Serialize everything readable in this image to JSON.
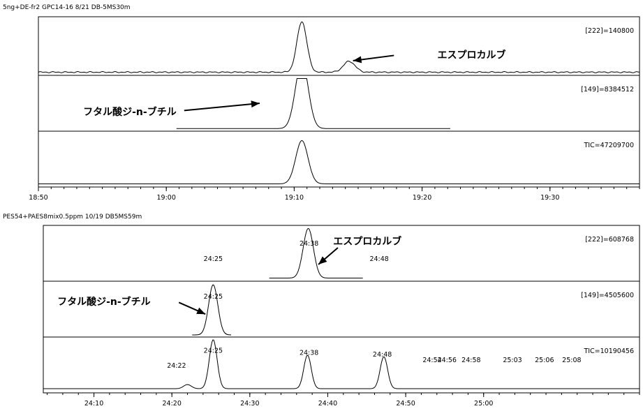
{
  "chart_data": [
    {
      "type": "line",
      "title": "5ng+DE-fr2 GPC14-16 8/21 DB-5MS30m",
      "xlabel": "",
      "ylabel": "",
      "x_axis_unit": "minutes (mm:ss)",
      "xlim": [
        1130,
        1177
      ],
      "x_ticks": [
        {
          "value": 1130,
          "label": "18:50"
        },
        {
          "value": 1140,
          "label": "19:00"
        },
        {
          "value": 1150,
          "label": "19:10"
        },
        {
          "value": 1160,
          "label": "19:20"
        },
        {
          "value": 1170,
          "label": "19:30"
        }
      ],
      "panels": [
        {
          "name": "[222]=140800",
          "baseline": 0.02,
          "peaks": [
            {
              "rt": 1150.6,
              "height": 0.93,
              "width": 0.85
            },
            {
              "rt": 1154.3,
              "height": 0.2,
              "width": 1.0
            }
          ],
          "noise": 0.012,
          "peak_labels": [],
          "annotation": {
            "text": "エスプロカルブ",
            "x": 1161.2,
            "rel_y": 0.35,
            "arrow_from": [
              1157.8,
              0.34
            ],
            "arrow_to": [
              1154.6,
              0.25
            ]
          }
        },
        {
          "name": "[149]=8384512",
          "baseline": 0.01,
          "peaks": [
            {
              "rt": 1150.6,
              "height": 1.3,
              "width": 1.1
            }
          ],
          "clip": 0.98,
          "noise": 0.0,
          "range": [
            1140.8,
            1162.2
          ],
          "peak_labels": [],
          "annotation": {
            "text": "フタル酸ジ-n-ブチル",
            "x": 1133.5,
            "rel_y": 0.35,
            "arrow_from": [
              1141.4,
              0.37
            ],
            "arrow_to": [
              1147.3,
              0.5
            ]
          }
        },
        {
          "name": "TIC=47209700",
          "baseline": 0.02,
          "peaks": [
            {
              "rt": 1150.6,
              "height": 0.84,
              "width": 1.05
            }
          ],
          "noise": 0.0,
          "peak_labels": []
        }
      ]
    },
    {
      "type": "line",
      "title": "PES54+PAES8mix0.5ppm 10/19 DB5MS59m",
      "xlabel": "",
      "ylabel": "",
      "x_axis_unit": "minutes (mm:ss)",
      "xlim": [
        1443.5,
        1520.0
      ],
      "x_ticks": [
        {
          "value": 1450,
          "label": "24:10"
        },
        {
          "value": 1460,
          "label": "24:20"
        },
        {
          "value": 1470,
          "label": "24:30"
        },
        {
          "value": 1480,
          "label": "24:40"
        },
        {
          "value": 1490,
          "label": "24:50"
        },
        {
          "value": 1500,
          "label": "25:00"
        }
      ],
      "panels": [
        {
          "name": "[222]=608768",
          "baseline": 0.02,
          "peaks": [
            {
              "rt": 1477.5,
              "height": 0.96,
              "width": 1.45
            }
          ],
          "noise": 0.0,
          "range": [
            1472.5,
            1484.5
          ],
          "peak_labels": [
            {
              "text": "24:25",
              "x": 1465.3,
              "rel_y": 0.36
            },
            {
              "text": "24:38",
              "x": 1477.6,
              "rel_y": 0.64
            },
            {
              "text": "24:48",
              "x": 1486.6,
              "rel_y": 0.36
            }
          ],
          "annotation": {
            "text": "エスプロカルブ",
            "x": 1480.7,
            "rel_y": 0.72,
            "arrow_from": [
              1481.3,
              0.6
            ],
            "arrow_to": [
              1478.8,
              0.3
            ]
          }
        },
        {
          "name": "[149]=4505600",
          "baseline": 0.0,
          "peaks": [
            {
              "rt": 1465.3,
              "height": 0.97,
              "width": 1.3
            }
          ],
          "noise": 0.0,
          "range": [
            1462.6,
            1467.6
          ],
          "peak_labels": [
            {
              "text": "24:25",
              "x": 1465.3,
              "rel_y": 0.69
            }
          ],
          "annotation": {
            "text": "フタル酸ジ-n-ブチル",
            "x": 1445.3,
            "rel_y": 0.64,
            "arrow_from": [
              1460.9,
              0.62
            ],
            "arrow_to": [
              1464.3,
              0.41
            ]
          }
        },
        {
          "name": "TIC=10190456",
          "baseline": 0.04,
          "peaks": [
            {
              "rt": 1462.0,
              "height": 0.08,
              "width": 1.1
            },
            {
              "rt": 1465.3,
              "height": 0.95,
              "width": 1.1
            },
            {
              "rt": 1477.4,
              "height": 0.65,
              "width": 1.05
            },
            {
              "rt": 1487.2,
              "height": 0.62,
              "width": 1.05
            }
          ],
          "noise": 0.0,
          "peak_labels": [
            {
              "text": "24:22",
              "x": 1460.6,
              "rel_y": 0.45
            },
            {
              "text": "24:25",
              "x": 1465.3,
              "rel_y": 0.72
            },
            {
              "text": "24:38",
              "x": 1477.6,
              "rel_y": 0.68
            },
            {
              "text": "24:48",
              "x": 1487.0,
              "rel_y": 0.65
            },
            {
              "text": "24:54",
              "x": 1493.4,
              "rel_y": 0.55
            },
            {
              "text": "24:56",
              "x": 1495.3,
              "rel_y": 0.55
            },
            {
              "text": "24:58",
              "x": 1498.4,
              "rel_y": 0.55
            },
            {
              "text": "25:03",
              "x": 1503.7,
              "rel_y": 0.55
            },
            {
              "text": "25:06",
              "x": 1507.8,
              "rel_y": 0.55
            },
            {
              "text": "25:08",
              "x": 1511.3,
              "rel_y": 0.55
            }
          ]
        }
      ]
    }
  ]
}
